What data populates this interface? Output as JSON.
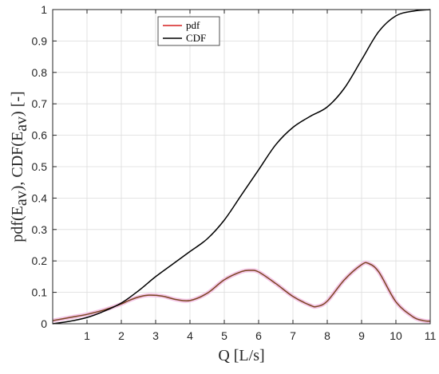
{
  "chart_data": {
    "type": "line",
    "xlabel": "Q [L/s]",
    "ylabel": {
      "prefix_a": "pdf(E",
      "sub_a": "av",
      "mid": "),  CDF(E",
      "sub_b": "av",
      "suffix": ")  [-]"
    },
    "xlim": [
      0,
      11
    ],
    "ylim": [
      0,
      1
    ],
    "xticks": [
      "1",
      "2",
      "3",
      "4",
      "5",
      "6",
      "7",
      "8",
      "9",
      "10",
      "11"
    ],
    "yticks": [
      "0",
      "0.1",
      "0.2",
      "0.3",
      "0.4",
      "0.5",
      "0.6",
      "0.7",
      "0.8",
      "0.9",
      "1"
    ],
    "grid": true,
    "legend_position": "top-center",
    "series": [
      {
        "name": "pdf",
        "color": "#d62020",
        "x": [
          0,
          0.5,
          1,
          1.5,
          2,
          2.2,
          2.5,
          2.8,
          3.2,
          3.6,
          4,
          4.5,
          5,
          5.5,
          5.75,
          6,
          6.5,
          7,
          7.5,
          7.7,
          8,
          8.5,
          9,
          9.2,
          9.5,
          10,
          10.5,
          10.8,
          11
        ],
        "y": [
          0.01,
          0.02,
          0.03,
          0.044,
          0.063,
          0.073,
          0.085,
          0.091,
          0.088,
          0.077,
          0.074,
          0.097,
          0.14,
          0.166,
          0.17,
          0.165,
          0.128,
          0.087,
          0.059,
          0.055,
          0.072,
          0.14,
          0.188,
          0.192,
          0.165,
          0.07,
          0.022,
          0.01,
          0.008
        ]
      },
      {
        "name": "CDF",
        "color": "#000000",
        "x": [
          0,
          0.5,
          1,
          1.5,
          2,
          2.5,
          3,
          3.5,
          4,
          4.5,
          5,
          5.5,
          6,
          6.5,
          7,
          7.5,
          8,
          8.5,
          9,
          9.5,
          10,
          10.5,
          11
        ],
        "y": [
          0,
          0.008,
          0.02,
          0.04,
          0.066,
          0.105,
          0.15,
          0.19,
          0.23,
          0.27,
          0.33,
          0.41,
          0.49,
          0.57,
          0.625,
          0.66,
          0.69,
          0.75,
          0.84,
          0.93,
          0.98,
          0.995,
          1.0
        ]
      }
    ]
  }
}
